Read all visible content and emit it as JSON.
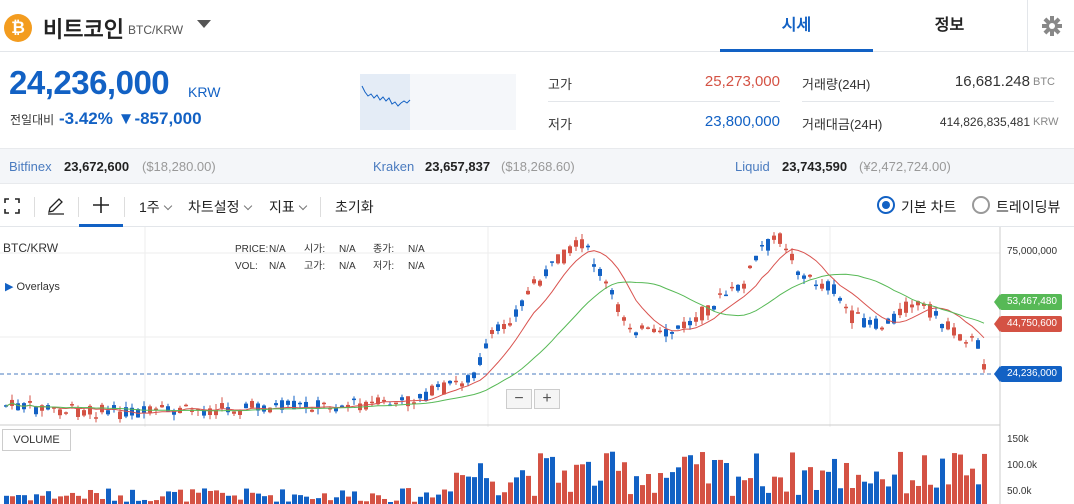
{
  "header": {
    "coin_symbol": "₿",
    "coin_name": "비트코인",
    "coin_code": "BTC/KRW",
    "tabs": [
      {
        "label": "시세",
        "active": true
      },
      {
        "label": "정보",
        "active": false
      }
    ],
    "settings_icon": "gear-icon"
  },
  "price": {
    "current": "24,236,000",
    "currency": "KRW",
    "prev_label": "전일대비",
    "change_pct": "-3.42%",
    "change_arrow": "▼",
    "change_abs": "-857,000",
    "high_label": "고가",
    "high": "25,273,000",
    "low_label": "저가",
    "low": "23,800,000",
    "vol_label": "거래량(24H)",
    "vol": "16,681.248",
    "vol_unit": "BTC",
    "amount_label": "거래대금(24H)",
    "amount": "414,826,835,481",
    "amount_unit": "KRW"
  },
  "exchanges": [
    {
      "name": "Bitfinex",
      "price": "23,672,600",
      "sub": "($18,280.00)"
    },
    {
      "name": "Kraken",
      "price": "23,657,837",
      "sub": "($18,268.60)"
    },
    {
      "name": "Liquid",
      "price": "23,743,590",
      "sub": "(¥2,472,724.00)"
    }
  ],
  "toolbar": {
    "period": "1주",
    "settings": "차트설정",
    "indicator": "지표",
    "reset": "초기화",
    "basic_chart": "기본 차트",
    "tradingview": "트레이딩뷰"
  },
  "chart": {
    "symbol": "BTC/KRW",
    "overlays": "Overlays",
    "ohlc": {
      "price_label": "PRICE:",
      "price": "N/A",
      "open_label": "시가:",
      "open": "N/A",
      "close_label": "종가:",
      "close": "N/A",
      "vol_label": "VOL:",
      "vol": "N/A",
      "high_label": "고가:",
      "high": "N/A",
      "low_label": "저가:",
      "low": "N/A"
    },
    "y_axis_top": "75,000,000",
    "ma_long": "53,467,480",
    "ma_short": "44,750,600",
    "last": "24,236,000",
    "volume_label": "VOLUME",
    "vol_ticks": [
      "150k",
      "100.0k",
      "50.0k"
    ],
    "zoom_out": "−",
    "zoom_in": "+",
    "colors": {
      "up": "#d45244",
      "down": "#1261c4",
      "ma_short": "#d9534f",
      "ma_long": "#57b956"
    }
  }
}
